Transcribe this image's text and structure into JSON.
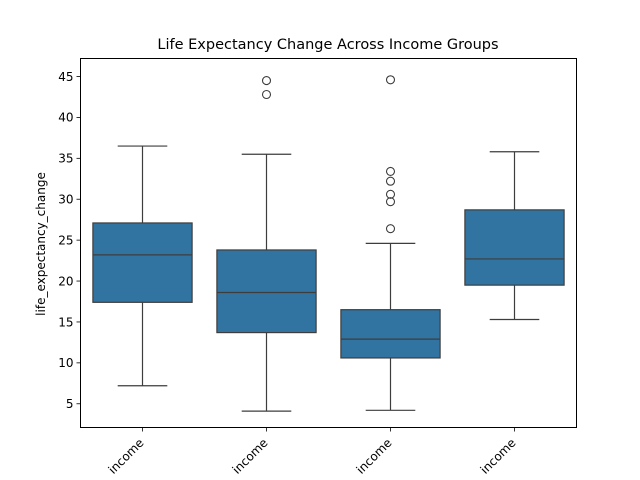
{
  "chart_data": {
    "type": "box",
    "title": "Life Expectancy Change Across Income Groups",
    "xlabel": "",
    "ylabel": "life_expectancy_change",
    "ylim": [
      2.1,
      47.2
    ],
    "yticks": [
      5,
      10,
      15,
      20,
      25,
      30,
      35,
      40,
      45
    ],
    "grid": false,
    "box_color": "#3274a1",
    "line_color": "#3d3d3d",
    "categories": [
      "income",
      "income",
      "income",
      "income"
    ],
    "boxes": [
      {
        "whisker_low": 7.2,
        "q1": 17.4,
        "median": 23.2,
        "q3": 27.1,
        "whisker_high": 36.5,
        "outliers": []
      },
      {
        "whisker_low": 4.1,
        "q1": 13.7,
        "median": 18.6,
        "q3": 23.8,
        "whisker_high": 35.5,
        "outliers": [
          42.8,
          44.5
        ]
      },
      {
        "whisker_low": 4.2,
        "q1": 10.6,
        "median": 12.9,
        "q3": 16.5,
        "whisker_high": 24.6,
        "outliers": [
          26.4,
          29.7,
          30.6,
          32.2,
          33.4,
          44.6
        ]
      },
      {
        "whisker_low": 15.3,
        "q1": 19.5,
        "median": 22.7,
        "q3": 28.7,
        "whisker_high": 35.8,
        "outliers": []
      }
    ]
  }
}
